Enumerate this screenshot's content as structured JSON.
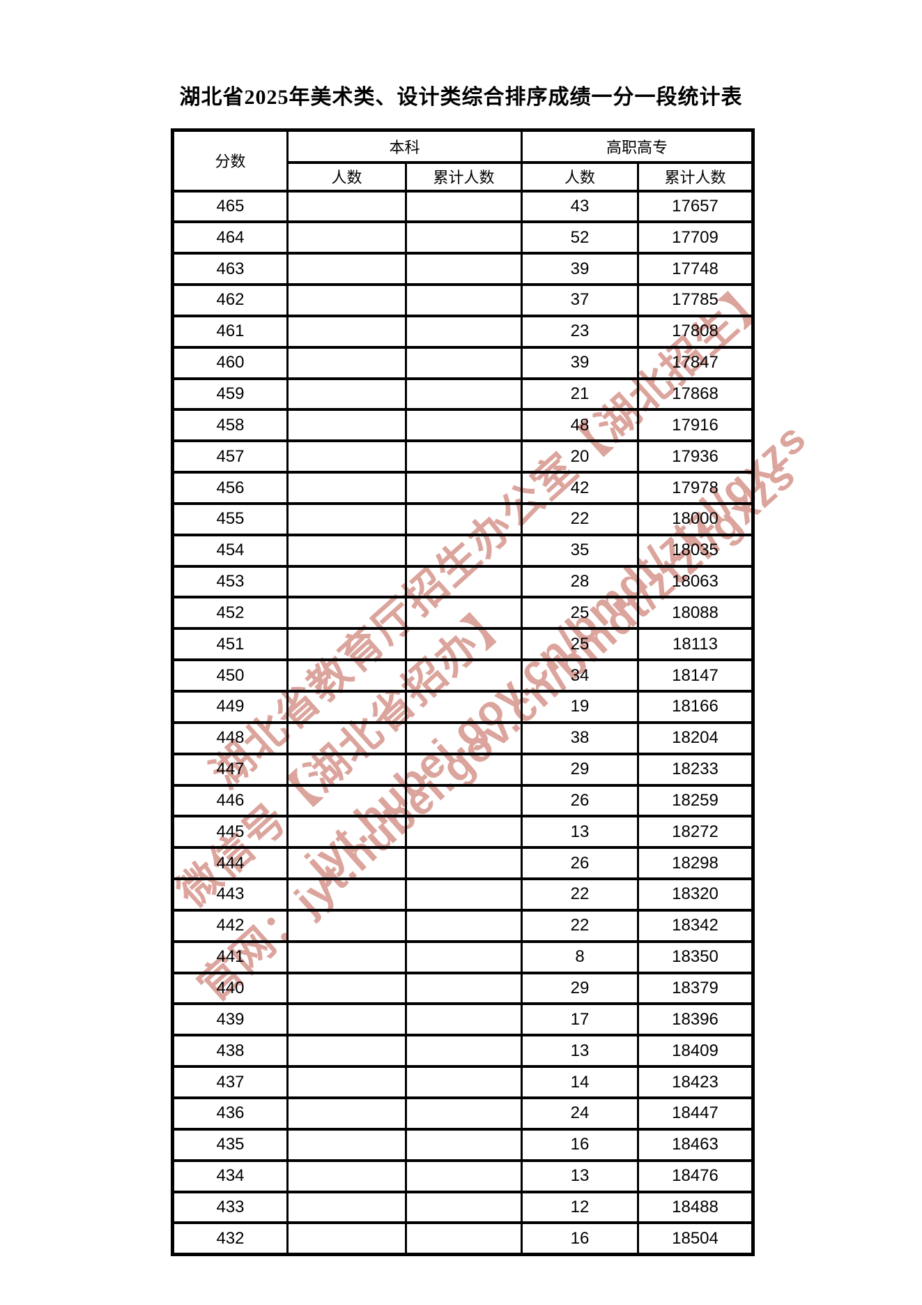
{
  "title": "湖北省2025年美术类、设计类综合排序成绩一分一段统计表",
  "table": {
    "score_header": "分数",
    "groups": [
      {
        "label": "本科",
        "sub": [
          "人数",
          "累计人数"
        ]
      },
      {
        "label": "高职高专",
        "sub": [
          "人数",
          "累计人数"
        ]
      }
    ],
    "columns": [
      "分数",
      "本科-人数",
      "本科-累计人数",
      "高职高专-人数",
      "高职高专-累计人数"
    ],
    "rows": [
      [
        "465",
        "",
        "",
        "43",
        "17657"
      ],
      [
        "464",
        "",
        "",
        "52",
        "17709"
      ],
      [
        "463",
        "",
        "",
        "39",
        "17748"
      ],
      [
        "462",
        "",
        "",
        "37",
        "17785"
      ],
      [
        "461",
        "",
        "",
        "23",
        "17808"
      ],
      [
        "460",
        "",
        "",
        "39",
        "17847"
      ],
      [
        "459",
        "",
        "",
        "21",
        "17868"
      ],
      [
        "458",
        "",
        "",
        "48",
        "17916"
      ],
      [
        "457",
        "",
        "",
        "20",
        "17936"
      ],
      [
        "456",
        "",
        "",
        "42",
        "17978"
      ],
      [
        "455",
        "",
        "",
        "22",
        "18000"
      ],
      [
        "454",
        "",
        "",
        "35",
        "18035"
      ],
      [
        "453",
        "",
        "",
        "28",
        "18063"
      ],
      [
        "452",
        "",
        "",
        "25",
        "18088"
      ],
      [
        "451",
        "",
        "",
        "25",
        "18113"
      ],
      [
        "450",
        "",
        "",
        "34",
        "18147"
      ],
      [
        "449",
        "",
        "",
        "19",
        "18166"
      ],
      [
        "448",
        "",
        "",
        "38",
        "18204"
      ],
      [
        "447",
        "",
        "",
        "29",
        "18233"
      ],
      [
        "446",
        "",
        "",
        "26",
        "18259"
      ],
      [
        "445",
        "",
        "",
        "13",
        "18272"
      ],
      [
        "444",
        "",
        "",
        "26",
        "18298"
      ],
      [
        "443",
        "",
        "",
        "22",
        "18320"
      ],
      [
        "442",
        "",
        "",
        "22",
        "18342"
      ],
      [
        "441",
        "",
        "",
        "8",
        "18350"
      ],
      [
        "440",
        "",
        "",
        "29",
        "18379"
      ],
      [
        "439",
        "",
        "",
        "17",
        "18396"
      ],
      [
        "438",
        "",
        "",
        "13",
        "18409"
      ],
      [
        "437",
        "",
        "",
        "14",
        "18423"
      ],
      [
        "436",
        "",
        "",
        "24",
        "18447"
      ],
      [
        "435",
        "",
        "",
        "16",
        "18463"
      ],
      [
        "434",
        "",
        "",
        "13",
        "18476"
      ],
      [
        "433",
        "",
        "",
        "12",
        "18488"
      ],
      [
        "432",
        "",
        "",
        "16",
        "18504"
      ]
    ]
  },
  "watermark": {
    "color_hex": "#dba49c",
    "lines": [
      "湖北省教育厅招生办公室【湖北招生】",
      "微信号【湖北省招办】",
      "官网：jyt.hubei.gov.cn/bmdt/ztzl/gxzs",
      "jyt.hubei.gov.cn/bmdt/ztzl/gxzs"
    ]
  }
}
